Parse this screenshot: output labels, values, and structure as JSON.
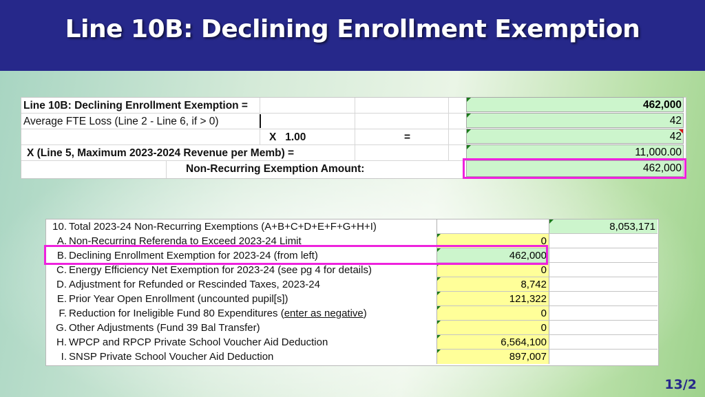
{
  "slide": {
    "title": "Line 10B: Declining Enrollment Exemption",
    "page_number": "13/2"
  },
  "colors": {
    "header": "#26288a",
    "highlight": "#ee22dd",
    "green_cell": "#ccf5cc",
    "yellow_cell": "#ffff99"
  },
  "top_table": {
    "row1_label": "Line 10B: Declining Enrollment Exemption  =",
    "row1_value": "462,000",
    "row2_label": "Average FTE Loss (Line 2 - Line 6, if > 0)",
    "row2_value": "42",
    "row3_mult": "X   1.00",
    "row3_eq": "=",
    "row3_value": "42",
    "row4_label": "X (Line 5, Maximum 2023-2024 Revenue per Memb) =",
    "row4_value": "11,000.00",
    "row5_label": "Non-Recurring Exemption Amount:",
    "row5_value": "462,000"
  },
  "bottom_table": {
    "rows": [
      {
        "label": "10.",
        "desc": "Total 2023-24 Non-Recurring Exemptions (A+B+C+D+E+F+G+H+I)",
        "value": "",
        "total": "8,053,171"
      },
      {
        "label": "A.",
        "desc": "Non-Recurring Referenda to Exceed 2023-24 Limit",
        "value": "0"
      },
      {
        "label": "B.",
        "desc": "Declining Enrollment Exemption for 2023-24 (from left)",
        "value": "462,000"
      },
      {
        "label": "C.",
        "desc": "Energy Efficiency Net Exemption for 2023-24 (see pg 4 for details)",
        "value": "0"
      },
      {
        "label": "D.",
        "desc": "Adjustment for Refunded or Rescinded Taxes, 2023-24",
        "value": "8,742"
      },
      {
        "label": "E.",
        "desc": "Prior Year Open Enrollment (uncounted pupil[s])",
        "value": "121,322"
      },
      {
        "label": "F.",
        "desc_pre": "Reduction for Ineligible Fund 80 Expenditures (",
        "desc_u": "enter as negative",
        "desc_post": ")",
        "value": "0"
      },
      {
        "label": "G.",
        "desc": "Other Adjustments (Fund 39 Bal Transfer)",
        "value": "0"
      },
      {
        "label": "H.",
        "desc": "WPCP and RPCP Private School Voucher Aid Deduction",
        "value": "6,564,100"
      },
      {
        "label": "I.",
        "desc": "SNSP Private School Voucher Aid Deduction",
        "value": "897,007"
      }
    ]
  }
}
